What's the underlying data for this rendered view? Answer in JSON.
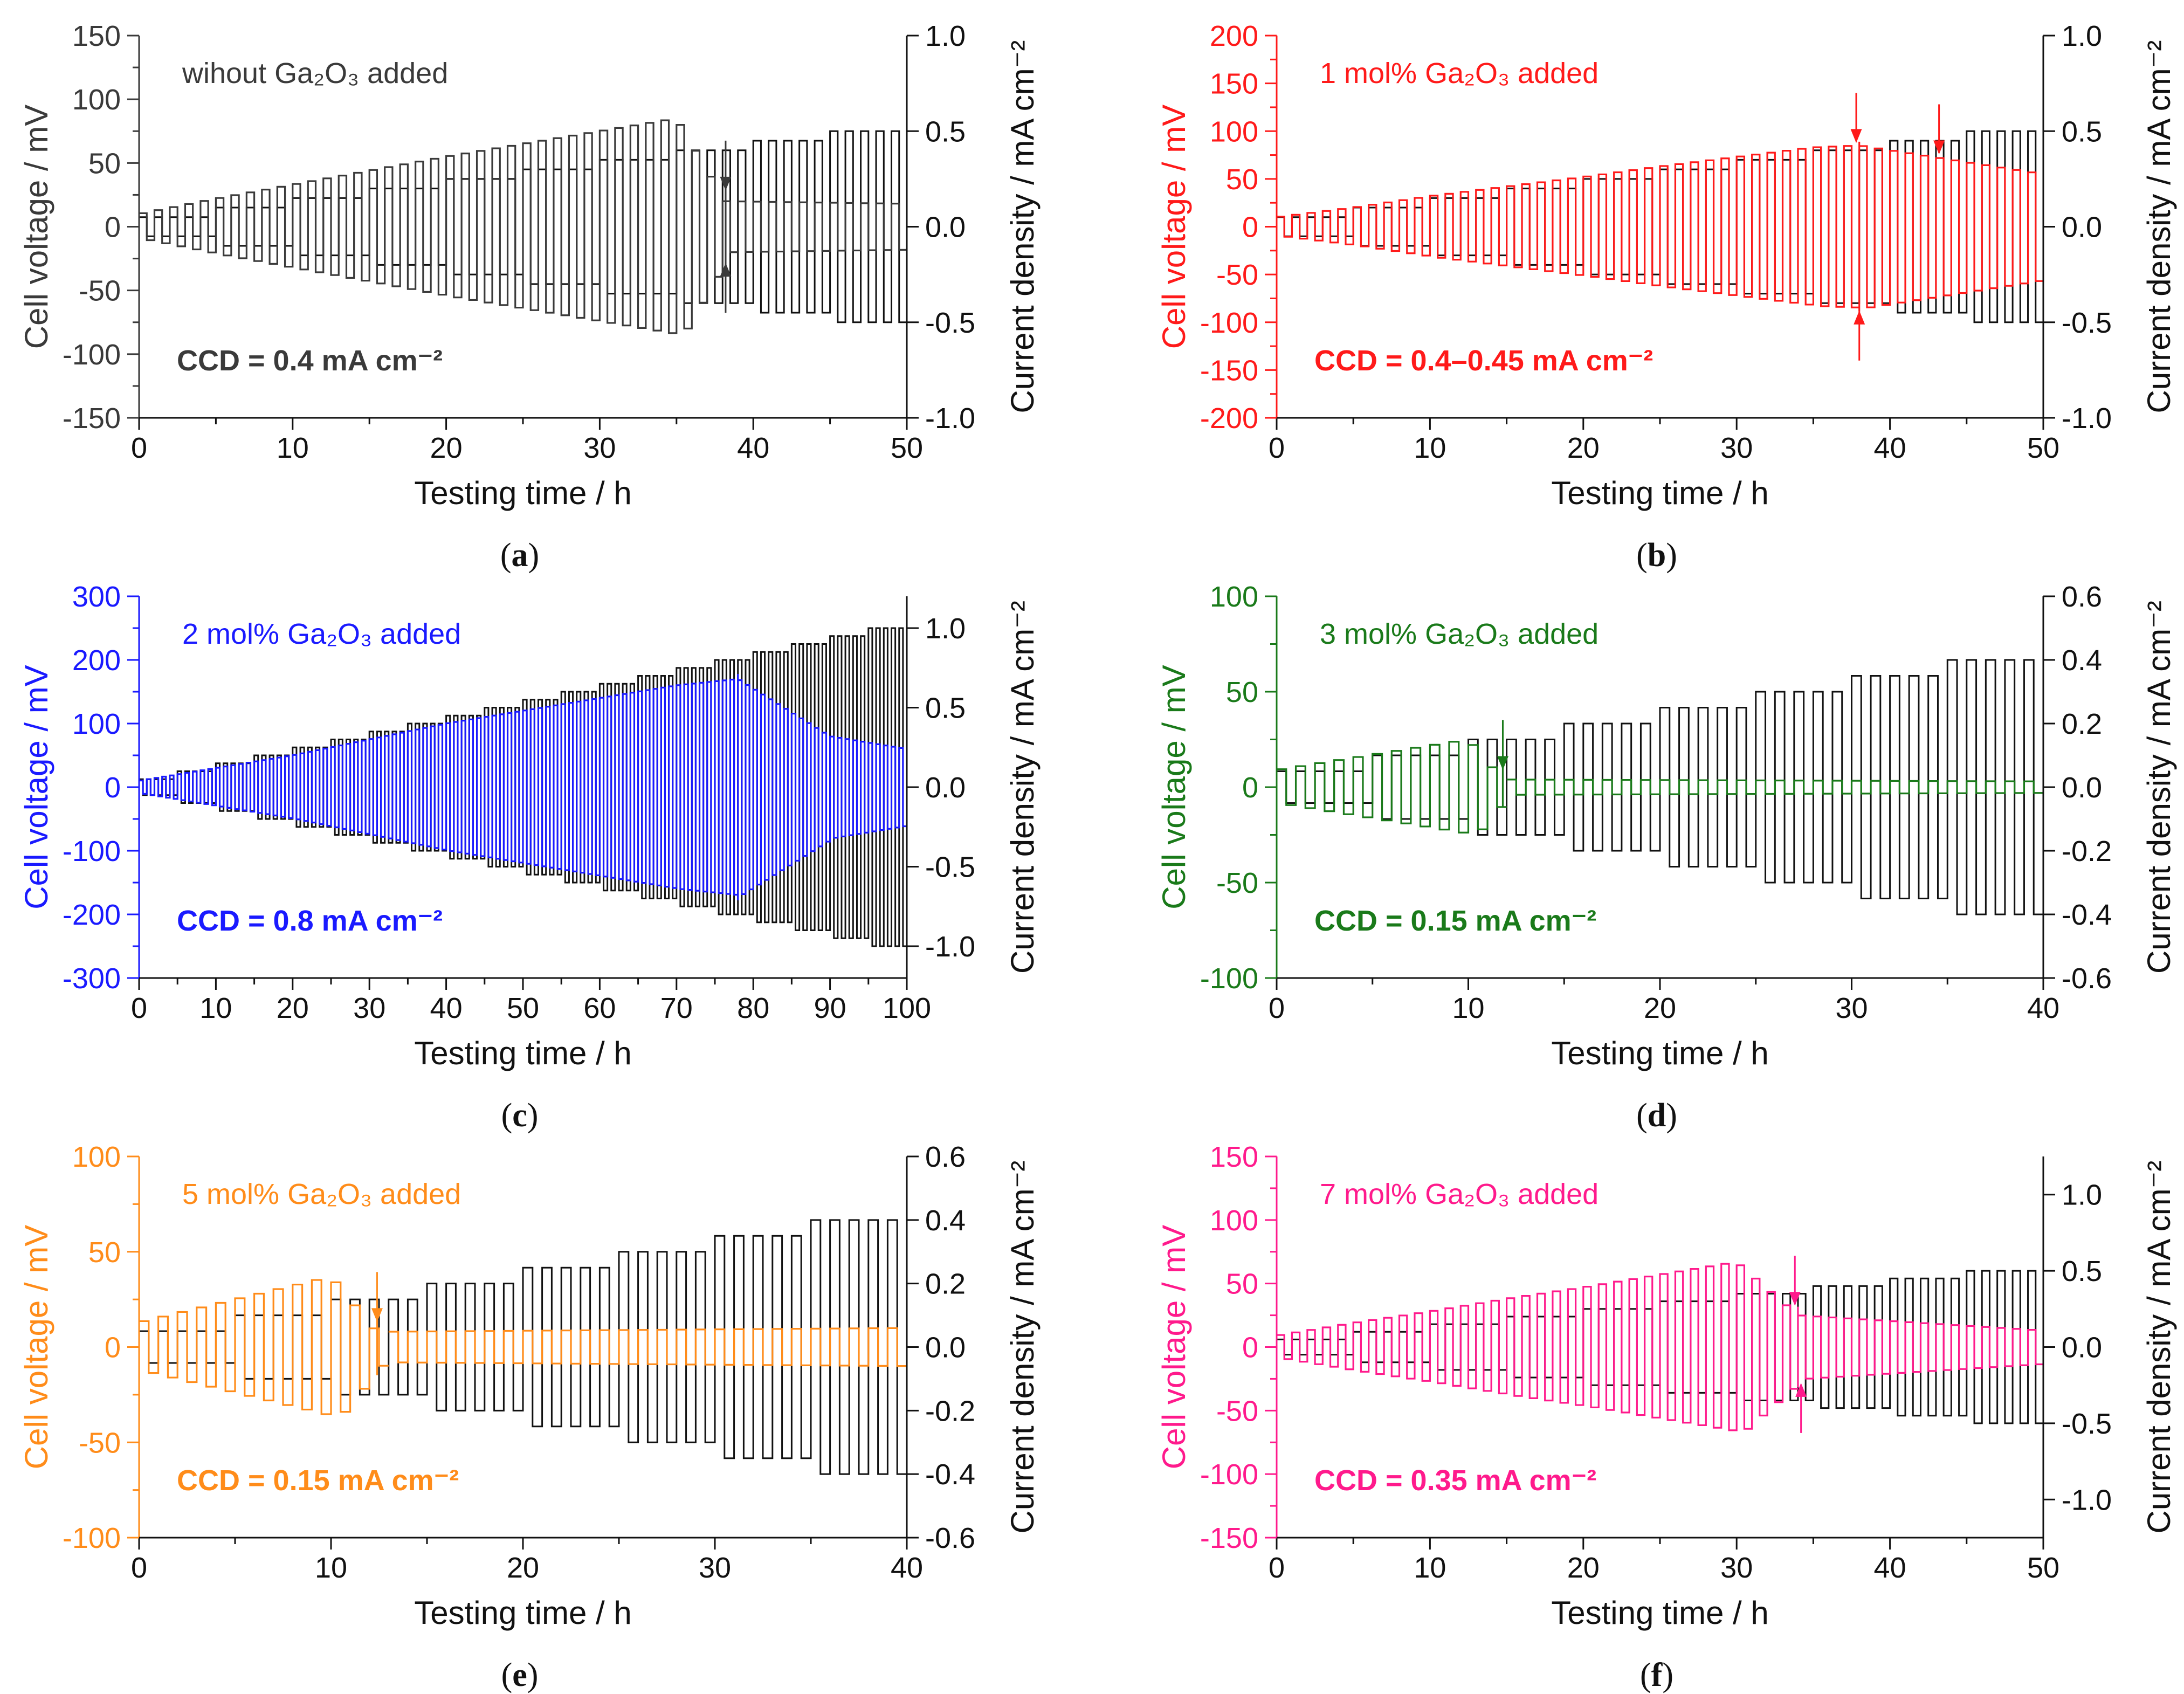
{
  "figure": {
    "panels": [
      {
        "letter": "a",
        "annotation": "wihout Ga₂O₃ added",
        "ccd_text": "CCD =  0.4 mA cm⁻²",
        "color": "#3a3a3a"
      },
      {
        "letter": "b",
        "annotation": "1 mol% Ga₂O₃ added",
        "ccd_text": "CCD =  0.4–0.45 mA cm⁻²",
        "color": "#ff1a1a"
      },
      {
        "letter": "c",
        "annotation": "2 mol% Ga₂O₃ added",
        "ccd_text": "CCD =  0.8 mA cm⁻²",
        "color": "#1a1aff"
      },
      {
        "letter": "d",
        "annotation": "3 mol% Ga₂O₃ added",
        "ccd_text": "CCD =  0.15 mA cm⁻²",
        "color": "#1a7a1a"
      },
      {
        "letter": "e",
        "annotation": "5 mol% Ga₂O₃ added",
        "ccd_text": "CCD =  0.15 mA cm⁻²",
        "color": "#ff8c1a"
      },
      {
        "letter": "f",
        "annotation": "7 mol% Ga₂O₃ added",
        "ccd_text": "CCD =  0.35 mA cm⁻²",
        "color": "#ff1a8c"
      }
    ]
  },
  "chart_data": [
    {
      "type": "line",
      "panel": "a",
      "xlabel": "Testing time / h",
      "ylabel": "Cell voltage / mV",
      "y2label": "Current density / mA cm⁻²",
      "xlim": [
        0,
        50
      ],
      "ylim": [
        -150,
        150
      ],
      "y2lim": [
        -1.0,
        1.0
      ],
      "xticks": [
        0,
        10,
        20,
        30,
        40,
        50
      ],
      "yticks": [
        -150,
        -100,
        -50,
        0,
        50,
        100,
        150
      ],
      "y2ticks": [
        -1.0,
        -0.5,
        0.0,
        0.5,
        1.0
      ],
      "y2decimals": 1,
      "color": "#3a3a3a",
      "step_current": 0.05,
      "short_at_h": 38.2,
      "series": [
        {
          "name": "Current density",
          "axis": "right",
          "x": [
            0,
            5,
            10,
            15,
            20,
            25,
            30,
            35,
            40,
            45
          ],
          "values": [
            0.05,
            0.1,
            0.15,
            0.2,
            0.25,
            0.3,
            0.35,
            0.4,
            0.45,
            0.5
          ]
        },
        {
          "name": "Cell voltage",
          "axis": "left",
          "x": [
            0,
            5,
            10,
            15,
            20,
            25,
            30,
            35,
            38.2,
            50
          ],
          "values": [
            10,
            22,
            33,
            44,
            55,
            65,
            75,
            85,
            20,
            18
          ]
        }
      ],
      "arrows_at_h": [
        38.2,
        38.2
      ]
    },
    {
      "type": "line",
      "panel": "b",
      "xlabel": "Testing time / h",
      "ylabel": "Cell voltage / mV",
      "y2label": "Current density / mA cm⁻²",
      "xlim": [
        0,
        50
      ],
      "ylim": [
        -200,
        200
      ],
      "y2lim": [
        -1.0,
        1.0
      ],
      "xticks": [
        0,
        10,
        20,
        30,
        40,
        50
      ],
      "yticks": [
        -200,
        -150,
        -100,
        -50,
        0,
        50,
        100,
        150,
        200
      ],
      "y2ticks": [
        -1.0,
        -0.5,
        0.0,
        0.5,
        1.0
      ],
      "y2decimals": 1,
      "color": "#ff1a1a",
      "step_current": 0.05,
      "short_at_h": 38.0,
      "series": [
        {
          "name": "Current density",
          "axis": "right",
          "x": [
            0,
            5,
            10,
            15,
            20,
            25,
            30,
            35,
            40,
            45
          ],
          "values": [
            0.05,
            0.1,
            0.15,
            0.2,
            0.25,
            0.3,
            0.35,
            0.4,
            0.45,
            0.5
          ]
        },
        {
          "name": "Cell voltage",
          "axis": "left",
          "x": [
            0,
            5,
            10,
            15,
            20,
            25,
            30,
            35,
            38.0,
            50
          ],
          "values": [
            10,
            20,
            32,
            42,
            52,
            63,
            73,
            83,
            85,
            55
          ]
        }
      ],
      "arrows_at_h": [
        37.8,
        38.0,
        43.2
      ]
    },
    {
      "type": "line",
      "panel": "c",
      "xlabel": "Testing time / h",
      "ylabel": "Cell voltage / mV",
      "y2label": "Current density / mA cm⁻²",
      "xlim": [
        0,
        100
      ],
      "ylim": [
        -300,
        300
      ],
      "y2lim": [
        -1.2,
        1.2
      ],
      "xticks": [
        0,
        10,
        20,
        30,
        40,
        50,
        60,
        70,
        80,
        90,
        100
      ],
      "yticks": [
        -300,
        -200,
        -100,
        0,
        100,
        200,
        300
      ],
      "y2ticks": [
        -1.0,
        -0.5,
        0.0,
        0.5,
        1.0
      ],
      "y2decimals": 1,
      "color": "#1a1aff",
      "step_current": 0.05,
      "short_at_h": 78.0,
      "series": [
        {
          "name": "Current density",
          "axis": "right",
          "x": [
            0,
            5,
            10,
            15,
            20,
            25,
            30,
            35,
            40,
            45,
            50,
            55,
            60,
            65,
            70,
            75,
            80,
            85,
            90,
            95
          ],
          "values": [
            0.05,
            0.1,
            0.15,
            0.2,
            0.25,
            0.3,
            0.35,
            0.4,
            0.45,
            0.5,
            0.55,
            0.6,
            0.65,
            0.7,
            0.75,
            0.8,
            0.85,
            0.9,
            0.95,
            1.0
          ]
        },
        {
          "name": "Cell voltage",
          "axis": "left",
          "x": [
            0,
            10,
            20,
            30,
            40,
            50,
            60,
            70,
            78.0,
            90,
            100
          ],
          "values": [
            10,
            30,
            50,
            75,
            100,
            120,
            140,
            160,
            170,
            80,
            60
          ]
        }
      ],
      "arrows_at_h": []
    },
    {
      "type": "line",
      "panel": "d",
      "xlabel": "Testing time / h",
      "ylabel": "Cell voltage / mV",
      "y2label": "Current density / mA cm⁻²",
      "xlim": [
        0,
        40
      ],
      "ylim": [
        -100,
        100
      ],
      "y2lim": [
        -0.6,
        0.6
      ],
      "xticks": [
        0,
        10,
        20,
        30,
        40
      ],
      "yticks": [
        -100,
        -50,
        0,
        50,
        100
      ],
      "y2ticks": [
        -0.6,
        -0.4,
        -0.2,
        0.0,
        0.2,
        0.4,
        0.6
      ],
      "y2decimals": 1,
      "color": "#1a7a1a",
      "step_current": 0.05,
      "short_at_h": 11.8,
      "series": [
        {
          "name": "Current density",
          "axis": "right",
          "x": [
            0,
            5,
            10,
            15,
            20,
            25,
            30,
            35
          ],
          "values": [
            0.05,
            0.1,
            0.15,
            0.2,
            0.25,
            0.3,
            0.35,
            0.4
          ]
        },
        {
          "name": "Cell voltage",
          "axis": "left",
          "x": [
            0,
            5,
            10,
            11.8,
            40
          ],
          "values": [
            9,
            17,
            25,
            4,
            3
          ]
        }
      ],
      "arrows_at_h": [
        11.8
      ]
    },
    {
      "type": "line",
      "panel": "e",
      "xlabel": "Testing time / h",
      "ylabel": "Cell voltage / mV",
      "y2label": "Current density / mA cm⁻²",
      "xlim": [
        0,
        40
      ],
      "ylim": [
        -100,
        100
      ],
      "y2lim": [
        -0.6,
        0.6
      ],
      "xticks": [
        0,
        10,
        20,
        30,
        40
      ],
      "yticks": [
        -100,
        -50,
        0,
        50,
        100
      ],
      "y2ticks": [
        -0.6,
        -0.4,
        -0.2,
        0.0,
        0.2,
        0.4,
        0.6
      ],
      "y2decimals": 1,
      "color": "#ff8c1a",
      "step_current": 0.05,
      "short_at_h": 12.4,
      "series": [
        {
          "name": "Current density",
          "axis": "right",
          "x": [
            0,
            5,
            10,
            15,
            20,
            25,
            30,
            35
          ],
          "values": [
            0.05,
            0.1,
            0.15,
            0.2,
            0.25,
            0.3,
            0.35,
            0.4
          ]
        },
        {
          "name": "Cell voltage",
          "axis": "left",
          "x": [
            0,
            5,
            10,
            12.4,
            40
          ],
          "values": [
            13,
            25,
            37,
            8,
            10
          ]
        }
      ],
      "arrows_at_h": [
        12.4
      ]
    },
    {
      "type": "line",
      "panel": "f",
      "xlabel": "Testing time / h",
      "ylabel": "Cell voltage / mV",
      "y2label": "Current density / mA cm⁻²",
      "xlim": [
        0,
        50
      ],
      "ylim": [
        -150,
        150
      ],
      "y2lim": [
        -1.25,
        1.25
      ],
      "xticks": [
        0,
        10,
        20,
        30,
        40,
        50
      ],
      "yticks": [
        -150,
        -100,
        -50,
        0,
        50,
        100,
        150
      ],
      "y2ticks": [
        -1.0,
        -0.5,
        0.0,
        0.5,
        1.0
      ],
      "y2decimals": 1,
      "color": "#ff1a8c",
      "step_current": 0.05,
      "short_at_h": 34.0,
      "series": [
        {
          "name": "Current density",
          "axis": "right",
          "x": [
            0,
            5,
            10,
            15,
            20,
            25,
            30,
            35,
            40,
            45
          ],
          "values": [
            0.05,
            0.1,
            0.15,
            0.2,
            0.25,
            0.3,
            0.35,
            0.4,
            0.45,
            0.5
          ]
        },
        {
          "name": "Cell voltage",
          "axis": "left",
          "x": [
            0,
            5,
            10,
            15,
            20,
            25,
            30,
            34.0,
            50
          ],
          "values": [
            9,
            19,
            28,
            38,
            47,
            57,
            67,
            25,
            13
          ]
        }
      ],
      "arrows_at_h": [
        33.8,
        34.2
      ]
    }
  ]
}
